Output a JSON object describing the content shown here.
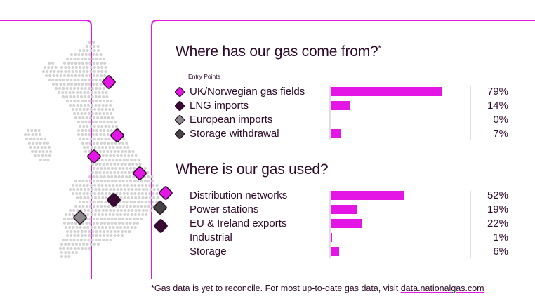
{
  "colors": {
    "magenta": "#e316e6",
    "dark": "#3a0a34",
    "grey": "#8a8a8a",
    "darkgrey": "#444444",
    "text": "#2e0a2a"
  },
  "chart_data": [
    {
      "type": "bar",
      "title": "Where has our gas come from?",
      "title_mark": "*",
      "subtitle": "Entry Points",
      "categories": [
        "UK/Norwegian gas fields",
        "LNG imports",
        "European imports",
        "Storage withdrawal"
      ],
      "values": [
        79,
        14,
        0,
        7
      ],
      "value_labels": [
        "79%",
        "14%",
        "0%",
        "7%"
      ],
      "legend_markers": [
        "magenta",
        "dark",
        "grey",
        "darkgrey"
      ],
      "unit": "%"
    },
    {
      "type": "bar",
      "title": "Where is our gas used?",
      "categories": [
        "Distribution networks",
        "Power stations",
        "EU & Ireland exports",
        "Industrial",
        "Storage"
      ],
      "values": [
        52,
        19,
        22,
        1,
        6
      ],
      "value_labels": [
        "52%",
        "19%",
        "22%",
        "1%",
        "6%"
      ],
      "unit": "%"
    }
  ],
  "footer": {
    "text": "*Gas data is yet to reconcile. For most up-to-date gas data, visit ",
    "link": "data.nationalgas.com"
  },
  "map_markers": [
    "magenta",
    "magenta",
    "magenta",
    "magenta",
    "magenta",
    "dark",
    "darkgrey",
    "grey",
    "dark",
    "dark"
  ]
}
